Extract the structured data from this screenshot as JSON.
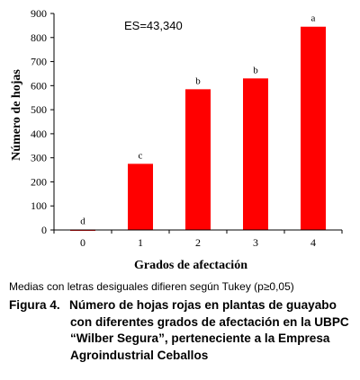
{
  "chart_data": {
    "type": "bar",
    "categories": [
      "0",
      "1",
      "2",
      "3",
      "4"
    ],
    "values": [
      2,
      275,
      585,
      630,
      845
    ],
    "letters": [
      "d",
      "c",
      "b",
      "b",
      "a"
    ],
    "ylim": [
      0,
      900
    ],
    "yticks": [
      "0",
      "100",
      "200",
      "300",
      "400",
      "500",
      "600",
      "700",
      "800",
      "900"
    ],
    "xlabel": "Grados de afectación",
    "ylabel": "Número de hojas",
    "annotation": "ES=43,340",
    "bar_color": "#ff0000",
    "grid": false
  },
  "footnote": "Medias con letras desiguales difieren según Tukey (p≥0,05)",
  "caption": {
    "label": "Figura 4.",
    "text": "Número de hojas rojas en plantas de guayabo con diferentes grados de afectación en la UBPC “Wilber Segura”, perteneciente a la Empresa Agroindustrial Ceballos"
  }
}
